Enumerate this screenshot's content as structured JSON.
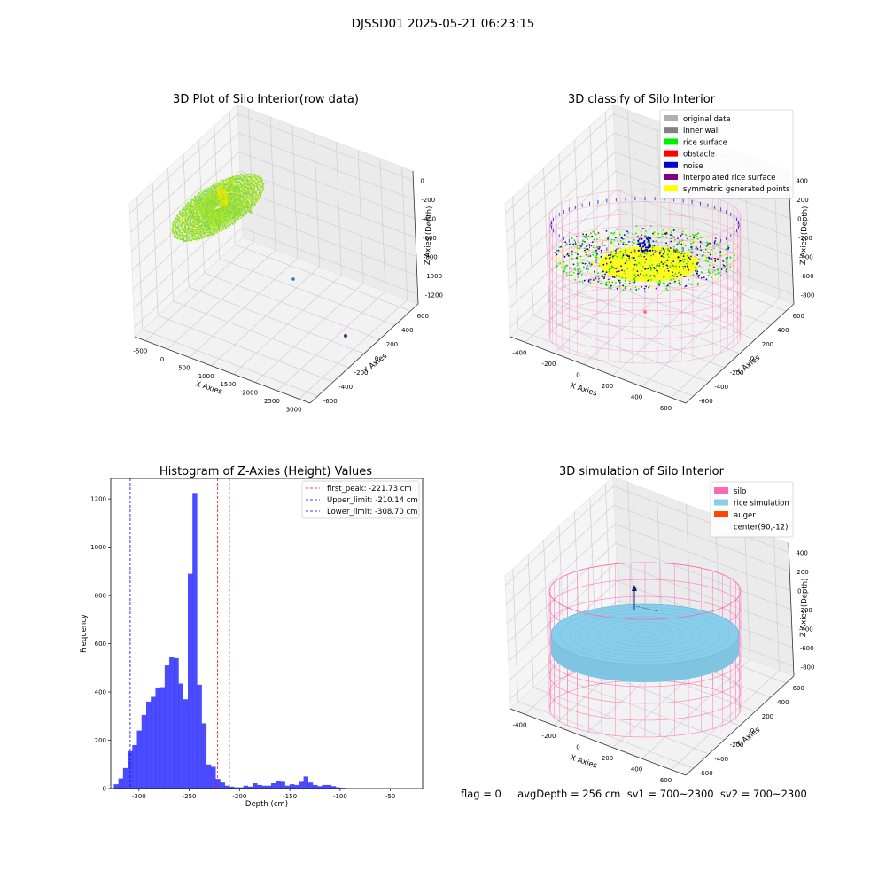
{
  "suptitle": "DJSSD01 2025-05-21 06:23:15",
  "panel1": {
    "title": "3D Plot of Silo Interior(row data)",
    "x_ticks": [
      "-500",
      "0",
      "500",
      "1000",
      "1500",
      "2000",
      "2500",
      "3000"
    ],
    "y_ticks": [
      "600",
      "400",
      "200",
      "0",
      "-200",
      "-400",
      "-600"
    ],
    "z_ticks": [
      "0",
      "-200",
      "-400",
      "-600",
      "-800",
      "-1000",
      "-1200"
    ],
    "xlabel": "X Axies",
    "ylabel": "Y Axies",
    "zlabel": "Z Axies (Depth)"
  },
  "panel2": {
    "title": "3D classify of Silo Interior",
    "x_ticks": [
      "-400",
      "-200",
      "0",
      "200",
      "400",
      "600"
    ],
    "y_ticks": [
      "600",
      "400",
      "200",
      "0",
      "-200",
      "-400",
      "-600"
    ],
    "z_ticks": [
      "400",
      "200",
      "0",
      "-200",
      "-400",
      "-600",
      "-800"
    ],
    "xlabel": "X Axies",
    "ylabel": "Y Axies",
    "zlabel": "Z Axies (Depth)",
    "legend": [
      {
        "label": "original data",
        "color": "#b0b0b0"
      },
      {
        "label": "inner wall",
        "color": "#808080"
      },
      {
        "label": "rice surface",
        "color": "#00ee00"
      },
      {
        "label": "obstacle",
        "color": "#ff0000"
      },
      {
        "label": "noise",
        "color": "#0000dd"
      },
      {
        "label": "interpolated rice surface",
        "color": "#800080"
      },
      {
        "label": "symmetric generated points",
        "color": "#ffff00"
      }
    ]
  },
  "panel4": {
    "title": "3D simulation of Silo Interior",
    "x_ticks": [
      "-400",
      "-200",
      "0",
      "200",
      "400",
      "600"
    ],
    "y_ticks": [
      "600",
      "400",
      "200",
      "0",
      "-200",
      "-400",
      "-600"
    ],
    "z_ticks": [
      "400",
      "200",
      "0",
      "-200",
      "-400",
      "-600",
      "-800"
    ],
    "xlabel": "X Axies",
    "ylabel": "Y Axies",
    "zlabel": "Z Axies (Depth)",
    "legend": [
      {
        "label": "silo",
        "color": "#ff69b4"
      },
      {
        "label": "rice simulation",
        "color": "#87ceeb"
      },
      {
        "label": "auger",
        "color": "#ff4500"
      },
      {
        "label": "center(90,-12)",
        "color": "#ffffff"
      }
    ]
  },
  "footer": "flag = 0     avgDepth = 256 cm  sv1 = 700~2300  sv2 = 700~2300",
  "chart_data": [
    {
      "type": "bar",
      "title": "Histogram of Z-Axies (Height) Values",
      "xlabel": "Depth (cm)",
      "ylabel": "Frequency",
      "xlim": [
        -328,
        -18
      ],
      "ylim": [
        0,
        1285
      ],
      "xticks": [
        -300,
        -250,
        -200,
        -150,
        -100,
        -50
      ],
      "yticks": [
        0,
        200,
        400,
        600,
        800,
        1000,
        1200
      ],
      "bin_start": -325,
      "bin_width": 4.6,
      "values": [
        18,
        42,
        85,
        155,
        180,
        240,
        305,
        360,
        380,
        415,
        420,
        510,
        545,
        540,
        435,
        370,
        890,
        1225,
        430,
        270,
        100,
        90,
        40,
        25,
        12,
        8,
        5,
        5,
        12,
        8,
        22,
        15,
        12,
        12,
        22,
        30,
        28,
        12,
        18,
        15,
        28,
        50,
        25,
        15,
        10,
        15,
        15,
        10,
        5,
        3,
        0
      ],
      "color": "#0000ff",
      "lines": [
        {
          "label": "first_peak: -221.73 cm",
          "x": -221.73,
          "color": "#ff0000"
        },
        {
          "label": "Upper_limit: -210.14 cm",
          "x": -210.14,
          "color": "#0000ff"
        },
        {
          "label": "Lower_limit: -308.70 cm",
          "x": -308.7,
          "color": "#0000ff"
        }
      ]
    }
  ]
}
